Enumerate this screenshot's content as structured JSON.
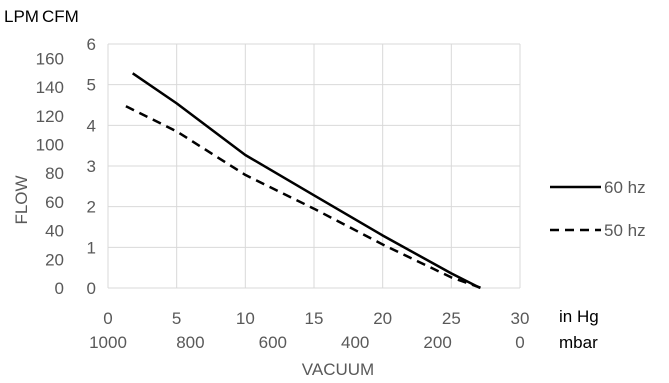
{
  "chart_data": {
    "type": "line",
    "header_left": "LPM",
    "header_right": "CFM",
    "ylabel": "FLOW",
    "xlabel": "VACUUM",
    "x_unit_primary": "in Hg",
    "x_unit_secondary": "mbar",
    "xlim": [
      0,
      30
    ],
    "ylim_cfm": [
      0,
      6
    ],
    "ylim_lpm": [
      0,
      170
    ],
    "x_ticks_inhg": [
      "0",
      "5",
      "10",
      "15",
      "20",
      "25",
      "30"
    ],
    "x_ticks_mbar": [
      "1000",
      "800",
      "600",
      "400",
      "200",
      "0"
    ],
    "y_ticks_cfm": [
      "0",
      "1",
      "2",
      "3",
      "4",
      "5",
      "6"
    ],
    "y_ticks_lpm": [
      "0",
      "20",
      "40",
      "60",
      "80",
      "100",
      "120",
      "140",
      "160"
    ],
    "grid": "horizontal",
    "legend_position": "right",
    "series": [
      {
        "name": "60 hz",
        "style": "solid",
        "color": "#000000",
        "x": [
          1.8,
          5,
          10,
          15,
          20,
          25,
          27.1
        ],
        "y": [
          5.28,
          4.54,
          3.27,
          2.28,
          1.29,
          0.36,
          0.0
        ]
      },
      {
        "name": "50 hz",
        "style": "dashed",
        "color": "#000000",
        "x": [
          1.3,
          5,
          10,
          15,
          20,
          25,
          27.2
        ],
        "y": [
          4.47,
          3.85,
          2.78,
          1.95,
          1.07,
          0.26,
          0.0
        ]
      }
    ]
  }
}
